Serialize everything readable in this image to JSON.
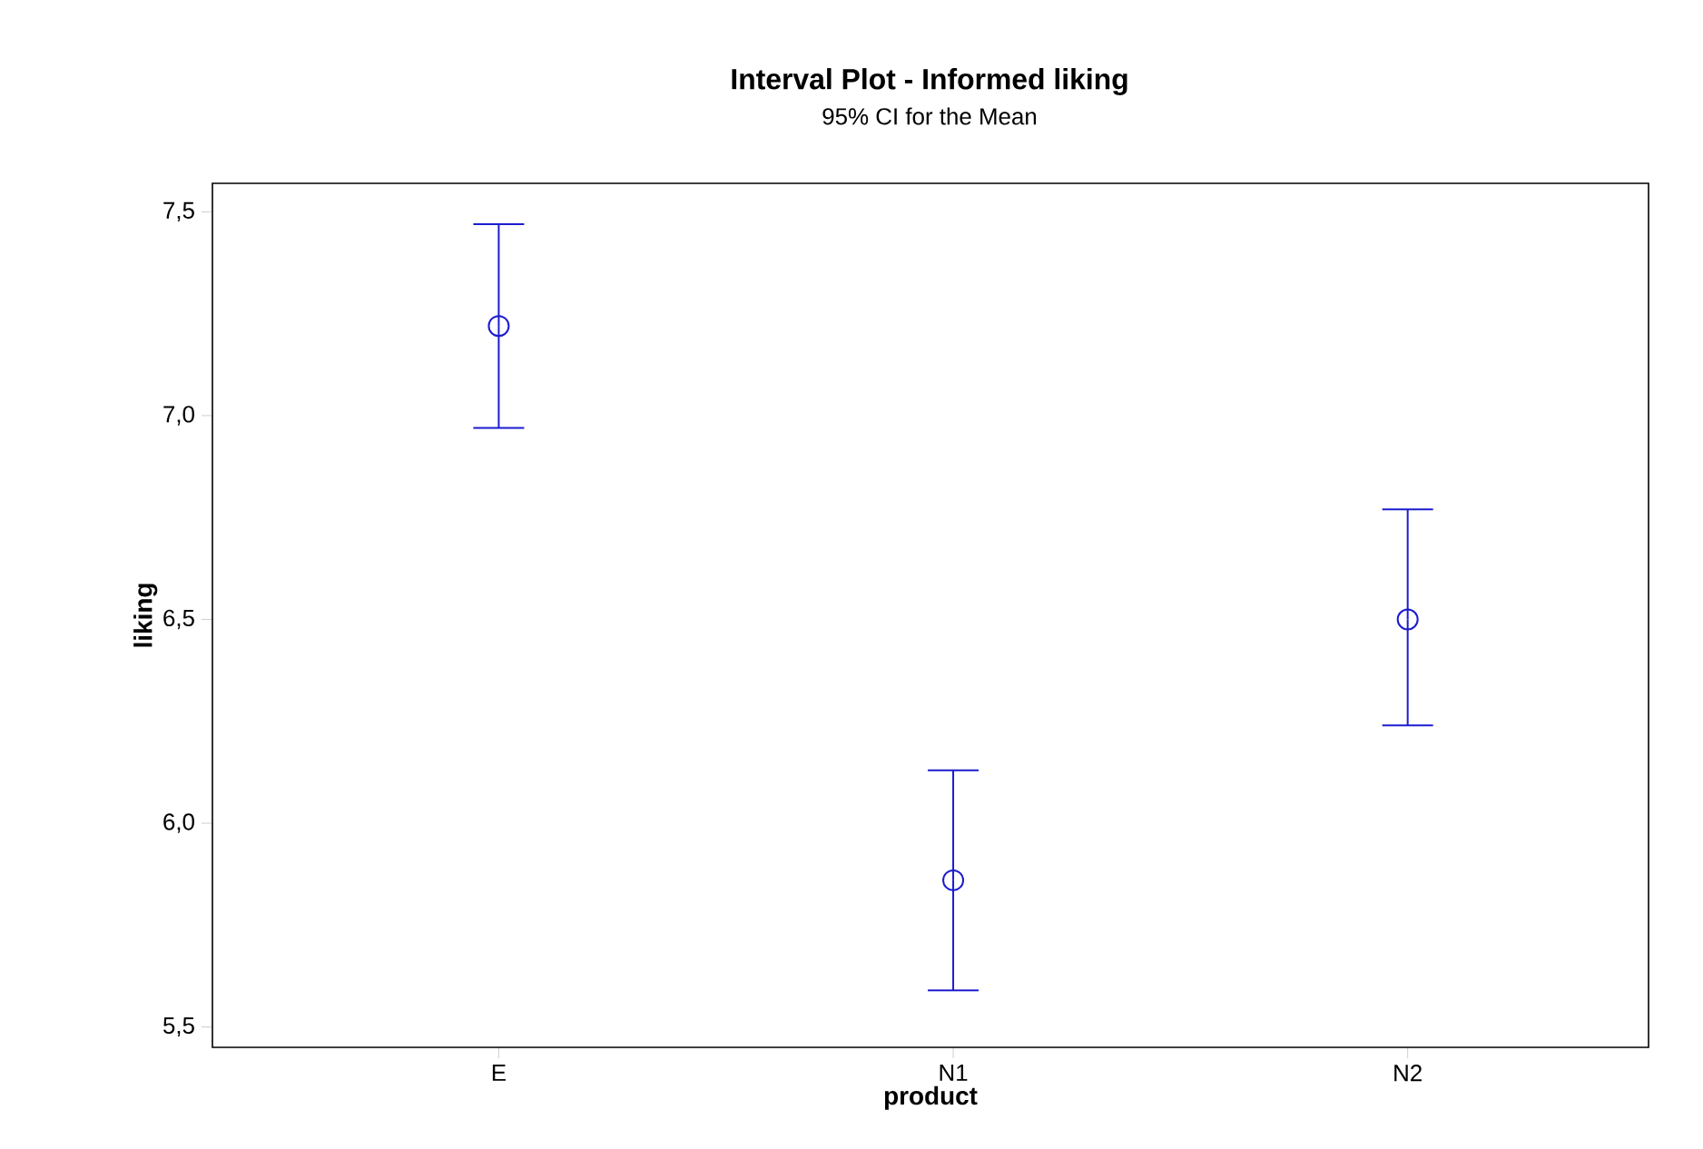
{
  "chart_data": {
    "type": "scatter",
    "title": "Interval Plot - Informed liking",
    "subtitle": "95% CI for the Mean",
    "xlabel": "product",
    "ylabel": "liking",
    "categories": [
      "E",
      "N1",
      "N2"
    ],
    "series": [
      {
        "color": "#1c1cd0",
        "values": [
          7.22,
          5.86,
          6.5
        ],
        "errors": [
          [
            6.97,
            7.47
          ],
          [
            5.59,
            6.13
          ],
          [
            6.24,
            6.77
          ]
        ]
      }
    ],
    "marker": "circle",
    "ylim": [
      5.45,
      7.57
    ],
    "yticks": [
      {
        "value": 5.5,
        "label": "5,5"
      },
      {
        "value": 6.0,
        "label": "6,0"
      },
      {
        "value": 6.5,
        "label": "6,5"
      },
      {
        "value": 7.0,
        "label": "7,0"
      },
      {
        "value": 7.5,
        "label": "7,5"
      }
    ]
  }
}
